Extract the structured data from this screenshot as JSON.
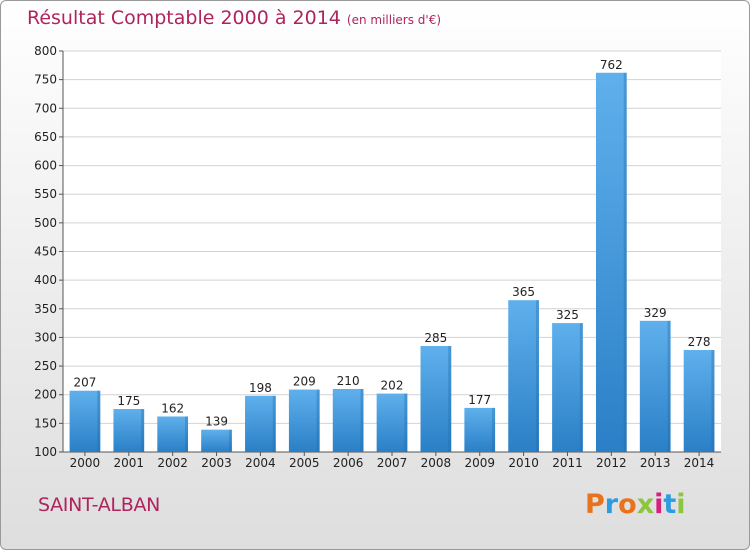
{
  "chart_data": {
    "type": "bar",
    "title": "Résultat Comptable 2000 à 2014",
    "unit_label": "(en milliers d'€)",
    "categories": [
      "2000",
      "2001",
      "2002",
      "2003",
      "2004",
      "2005",
      "2006",
      "2007",
      "2008",
      "2009",
      "2010",
      "2011",
      "2012",
      "2013",
      "2014"
    ],
    "values": [
      207,
      175,
      162,
      139,
      198,
      209,
      210,
      202,
      285,
      177,
      365,
      325,
      762,
      329,
      278
    ],
    "ylim": [
      100,
      800
    ],
    "yticks": [
      100,
      150,
      200,
      250,
      300,
      350,
      400,
      450,
      500,
      550,
      600,
      650,
      700,
      750,
      800
    ],
    "grid": true,
    "bar_color": "#3d96dc"
  },
  "place_name": "SAINT-ALBAN",
  "logo": {
    "letters": [
      "P",
      "r",
      "o",
      "x",
      "i",
      "t",
      "i"
    ],
    "colors": [
      "#e8731c",
      "#2d9be0",
      "#e8731c",
      "#8cc63f",
      "#d6207e",
      "#2d9be0",
      "#8cc63f"
    ]
  }
}
